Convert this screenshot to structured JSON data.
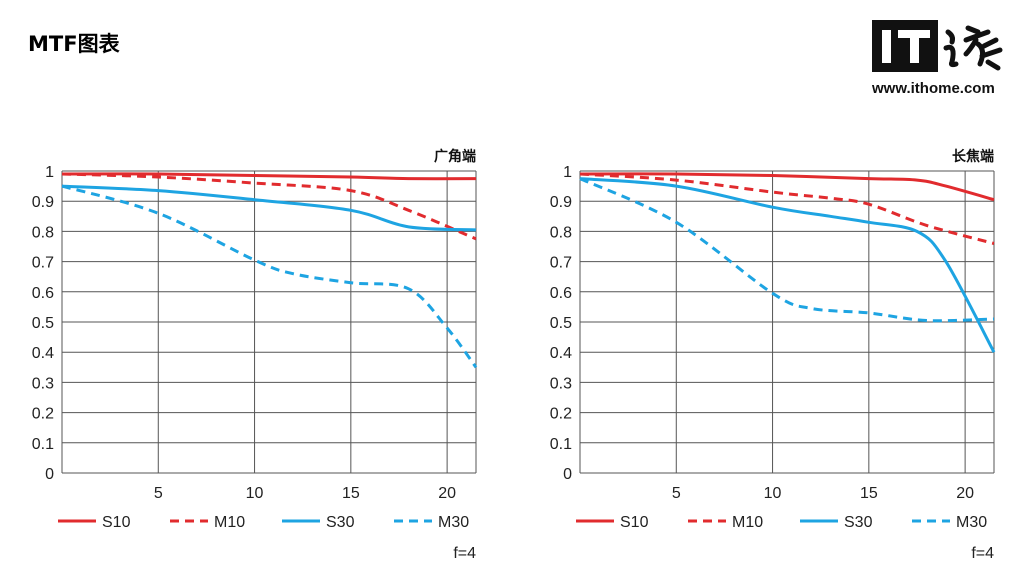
{
  "page": {
    "title": "MTF图表",
    "site_url": "www.ithome.com",
    "logo_text": "IT之家"
  },
  "colors": {
    "red": "#e12b2e",
    "blue": "#1ea4e2",
    "grid": "#555555"
  },
  "chart_data": [
    {
      "type": "line",
      "title": "",
      "subtitle": "广角端",
      "aperture_label": "f=4",
      "xlabel": "",
      "ylabel": "",
      "xlim": [
        0,
        21.5
      ],
      "ylim": [
        0,
        1
      ],
      "x_ticks": [
        5,
        10,
        15,
        20
      ],
      "y_ticks": [
        0,
        0.1,
        0.2,
        0.3,
        0.4,
        0.5,
        0.6,
        0.7,
        0.8,
        0.9,
        1
      ],
      "y_tick_labels": [
        "0",
        "0.1",
        "0.2",
        "0.3",
        "0.4",
        "0.5",
        "0.6",
        "0.7",
        "0.8",
        "0.9",
        "1"
      ],
      "grid": true,
      "legend_position": "bottom",
      "series": [
        {
          "name": "S10",
          "color": "red",
          "dashed": false,
          "points": [
            [
              0,
              0.99
            ],
            [
              5,
              0.99
            ],
            [
              10,
              0.985
            ],
            [
              15,
              0.98
            ],
            [
              18,
              0.975
            ],
            [
              21.5,
              0.975
            ]
          ]
        },
        {
          "name": "M10",
          "color": "red",
          "dashed": true,
          "points": [
            [
              0,
              0.99
            ],
            [
              5,
              0.98
            ],
            [
              10,
              0.96
            ],
            [
              15,
              0.935
            ],
            [
              18,
              0.87
            ],
            [
              21.5,
              0.775
            ]
          ]
        },
        {
          "name": "S30",
          "color": "blue",
          "dashed": false,
          "points": [
            [
              0,
              0.95
            ],
            [
              5,
              0.935
            ],
            [
              10,
              0.905
            ],
            [
              15,
              0.87
            ],
            [
              18,
              0.815
            ],
            [
              21.5,
              0.805
            ]
          ]
        },
        {
          "name": "M30",
          "color": "blue",
          "dashed": true,
          "points": [
            [
              0,
              0.95
            ],
            [
              5,
              0.86
            ],
            [
              10,
              0.705
            ],
            [
              12,
              0.66
            ],
            [
              15,
              0.63
            ],
            [
              18,
              0.61
            ],
            [
              20,
              0.48
            ],
            [
              21.5,
              0.35
            ]
          ]
        }
      ]
    },
    {
      "type": "line",
      "title": "",
      "subtitle": "长焦端",
      "aperture_label": "f=4",
      "xlabel": "",
      "ylabel": "",
      "xlim": [
        0,
        21.5
      ],
      "ylim": [
        0,
        1
      ],
      "x_ticks": [
        5,
        10,
        15,
        20
      ],
      "y_ticks": [
        0,
        0.1,
        0.2,
        0.3,
        0.4,
        0.5,
        0.6,
        0.7,
        0.8,
        0.9,
        1
      ],
      "y_tick_labels": [
        "0",
        "0.1",
        "0.2",
        "0.3",
        "0.4",
        "0.5",
        "0.6",
        "0.7",
        "0.8",
        "0.9",
        "1"
      ],
      "grid": true,
      "legend_position": "bottom",
      "series": [
        {
          "name": "S10",
          "color": "red",
          "dashed": false,
          "points": [
            [
              0,
              0.99
            ],
            [
              5,
              0.99
            ],
            [
              10,
              0.985
            ],
            [
              15,
              0.975
            ],
            [
              17.5,
              0.97
            ],
            [
              19,
              0.95
            ],
            [
              21.5,
              0.905
            ]
          ]
        },
        {
          "name": "M10",
          "color": "red",
          "dashed": true,
          "points": [
            [
              0,
              0.99
            ],
            [
              5,
              0.97
            ],
            [
              10,
              0.93
            ],
            [
              13,
              0.91
            ],
            [
              15,
              0.89
            ],
            [
              18,
              0.82
            ],
            [
              21.5,
              0.76
            ]
          ]
        },
        {
          "name": "S30",
          "color": "blue",
          "dashed": false,
          "points": [
            [
              0,
              0.975
            ],
            [
              5,
              0.95
            ],
            [
              10,
              0.88
            ],
            [
              13,
              0.85
            ],
            [
              15,
              0.83
            ],
            [
              17.5,
              0.8
            ],
            [
              19,
              0.7
            ],
            [
              21.5,
              0.4
            ]
          ]
        },
        {
          "name": "M30",
          "color": "blue",
          "dashed": true,
          "points": [
            [
              0,
              0.975
            ],
            [
              5,
              0.83
            ],
            [
              10,
              0.595
            ],
            [
              12,
              0.545
            ],
            [
              15,
              0.53
            ],
            [
              18,
              0.505
            ],
            [
              21.5,
              0.51
            ]
          ]
        }
      ]
    }
  ]
}
